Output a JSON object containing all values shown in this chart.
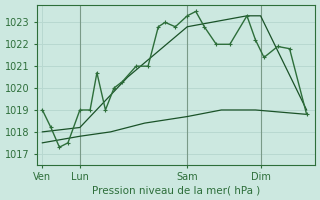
{
  "bg_color": "#cce8e0",
  "grid_color": "#b8d8d0",
  "line_color": "#2d6e3a",
  "line_color_smooth": "#1a5228",
  "xlabel": "Pression niveau de la mer( hPa )",
  "yticks": [
    1017,
    1018,
    1019,
    1020,
    1021,
    1022,
    1023
  ],
  "xtick_labels": [
    "Ven",
    "Lun",
    "Sam",
    "Dim"
  ],
  "xtick_positions": [
    0,
    2.2,
    8.5,
    12.8
  ],
  "ylim": [
    1016.5,
    1023.8
  ],
  "xlim": [
    -0.3,
    16.0
  ],
  "series_jagged": {
    "x": [
      0,
      0.5,
      1.0,
      1.5,
      2.2,
      2.8,
      3.2,
      3.7,
      4.2,
      4.7,
      5.5,
      6.2,
      6.8,
      7.2,
      7.8,
      8.5,
      9.0,
      9.5,
      10.2,
      11.0,
      12.0,
      12.5,
      13.0,
      13.8,
      14.5,
      15.5
    ],
    "y": [
      1019.0,
      1018.2,
      1017.3,
      1017.5,
      1019.0,
      1019.0,
      1020.7,
      1019.0,
      1020.0,
      1020.3,
      1021.0,
      1021.0,
      1022.8,
      1023.0,
      1022.8,
      1023.3,
      1023.5,
      1022.8,
      1022.0,
      1022.0,
      1023.3,
      1022.2,
      1021.4,
      1021.9,
      1021.8,
      1018.8
    ]
  },
  "series_upper": {
    "x": [
      0,
      2.2,
      5.0,
      8.5,
      12.0,
      12.8,
      15.5
    ],
    "y": [
      1018.0,
      1018.2,
      1020.5,
      1022.8,
      1023.3,
      1023.3,
      1019.0
    ]
  },
  "series_lower": {
    "x": [
      0,
      2.2,
      4.0,
      6.0,
      8.5,
      10.5,
      12.5,
      15.5
    ],
    "y": [
      1017.5,
      1017.8,
      1018.0,
      1018.4,
      1018.7,
      1019.0,
      1019.0,
      1018.8
    ]
  },
  "vlines": [
    2.2,
    8.5,
    12.8
  ],
  "vline_color": "#7a9a88"
}
